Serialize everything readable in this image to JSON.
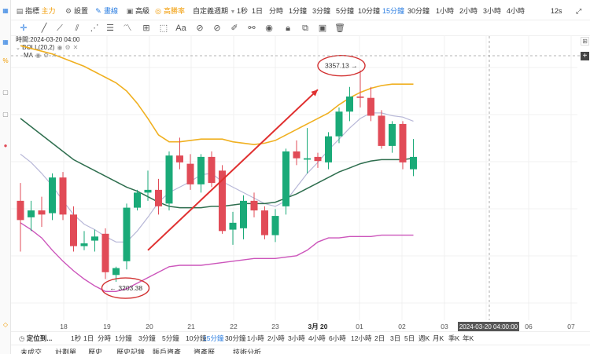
{
  "toolbar": {
    "indicator_label": "指標",
    "indicator_badge": "主力",
    "settings_label": "設置",
    "draw_label": "畫線",
    "advanced_label": "高級",
    "win_rate_label": "高勝率",
    "custom_period_label": "自定義週期",
    "periods": [
      "1秒",
      "1日",
      "分時",
      "1分鐘",
      "3分鐘",
      "5分鐘",
      "10分鐘",
      "15分鐘",
      "30分鐘",
      "1小時",
      "2小時",
      "3小時",
      "4小時"
    ],
    "active_period": "15分鐘",
    "countdown": "12s"
  },
  "chart_info": {
    "time_label": "時間:2024-03-20 04:00",
    "boll_label": "BOLL(20,2)",
    "ma_label": "MA"
  },
  "annotations": {
    "low_price": "3203.38",
    "high_price": "3357.13"
  },
  "crosshair_time": "2024-03-20 04:00:00",
  "colors": {
    "up": "#1aaa78",
    "down": "#e14b57",
    "boll_upper": "#f0b020",
    "boll_lower": "#cc55bb",
    "boll_mid": "#2e6e4e",
    "ma": "#b8b8d8",
    "arrow": "#e03030",
    "accent": "#2a7de1"
  },
  "chart_data": {
    "type": "candlestick",
    "x_ticks": [
      "18",
      "19",
      "20",
      "21",
      "22",
      "23",
      "3月 20",
      "01",
      "02",
      "03",
      "05",
      "06",
      "07"
    ],
    "candles": [
      {
        "o": 3262,
        "h": 3275,
        "l": 3225,
        "c": 3248
      },
      {
        "o": 3250,
        "h": 3262,
        "l": 3240,
        "c": 3255
      },
      {
        "o": 3255,
        "h": 3265,
        "l": 3243,
        "c": 3252
      },
      {
        "o": 3253,
        "h": 3282,
        "l": 3248,
        "c": 3279
      },
      {
        "o": 3279,
        "h": 3283,
        "l": 3248,
        "c": 3252
      },
      {
        "o": 3252,
        "h": 3258,
        "l": 3225,
        "c": 3229
      },
      {
        "o": 3229,
        "h": 3240,
        "l": 3226,
        "c": 3231
      },
      {
        "o": 3233,
        "h": 3241,
        "l": 3225,
        "c": 3236
      },
      {
        "o": 3238,
        "h": 3242,
        "l": 3205,
        "c": 3210
      },
      {
        "o": 3208,
        "h": 3214,
        "l": 3203,
        "c": 3213
      },
      {
        "o": 3218,
        "h": 3260,
        "l": 3212,
        "c": 3257
      },
      {
        "o": 3257,
        "h": 3270,
        "l": 3255,
        "c": 3268
      },
      {
        "o": 3268,
        "h": 3284,
        "l": 3262,
        "c": 3270
      },
      {
        "o": 3270,
        "h": 3278,
        "l": 3252,
        "c": 3258
      },
      {
        "o": 3260,
        "h": 3298,
        "l": 3255,
        "c": 3295
      },
      {
        "o": 3295,
        "h": 3308,
        "l": 3285,
        "c": 3290
      },
      {
        "o": 3289,
        "h": 3296,
        "l": 3270,
        "c": 3274
      },
      {
        "o": 3274,
        "h": 3296,
        "l": 3268,
        "c": 3294
      },
      {
        "o": 3294,
        "h": 3298,
        "l": 3272,
        "c": 3275
      },
      {
        "o": 3284,
        "h": 3288,
        "l": 3238,
        "c": 3240
      },
      {
        "o": 3241,
        "h": 3254,
        "l": 3230,
        "c": 3246
      },
      {
        "o": 3242,
        "h": 3266,
        "l": 3234,
        "c": 3262
      },
      {
        "o": 3262,
        "h": 3268,
        "l": 3250,
        "c": 3255
      },
      {
        "o": 3255,
        "h": 3258,
        "l": 3234,
        "c": 3237
      },
      {
        "o": 3237,
        "h": 3256,
        "l": 3232,
        "c": 3251
      },
      {
        "o": 3258,
        "h": 3300,
        "l": 3252,
        "c": 3298
      },
      {
        "o": 3298,
        "h": 3306,
        "l": 3288,
        "c": 3293
      },
      {
        "o": 3292,
        "h": 3315,
        "l": 3282,
        "c": 3293
      },
      {
        "o": 3294,
        "h": 3297,
        "l": 3286,
        "c": 3291
      },
      {
        "o": 3290,
        "h": 3312,
        "l": 3285,
        "c": 3309
      },
      {
        "o": 3309,
        "h": 3330,
        "l": 3304,
        "c": 3327
      },
      {
        "o": 3327,
        "h": 3345,
        "l": 3320,
        "c": 3338
      },
      {
        "o": 3338,
        "h": 3357,
        "l": 3330,
        "c": 3337
      },
      {
        "o": 3337,
        "h": 3345,
        "l": 3320,
        "c": 3324
      },
      {
        "o": 3324,
        "h": 3328,
        "l": 3300,
        "c": 3302
      },
      {
        "o": 3302,
        "h": 3320,
        "l": 3297,
        "c": 3318
      },
      {
        "o": 3318,
        "h": 3320,
        "l": 3285,
        "c": 3290
      },
      {
        "o": 3285,
        "h": 3307,
        "l": 3280,
        "c": 3294
      }
    ],
    "boll_upper": [
      3375,
      3373,
      3371,
      3369,
      3366,
      3363,
      3360,
      3356,
      3352,
      3348,
      3342,
      3333,
      3322,
      3310,
      3305,
      3305,
      3306,
      3307,
      3307,
      3307,
      3305,
      3304,
      3303,
      3304,
      3306,
      3310,
      3314,
      3318,
      3322,
      3326,
      3332,
      3337,
      3341,
      3344,
      3346,
      3347,
      3347,
      3347
    ],
    "boll_mid": [
      3322,
      3316,
      3310,
      3304,
      3298,
      3292,
      3288,
      3284,
      3280,
      3276,
      3272,
      3269,
      3265,
      3261,
      3258,
      3257,
      3257,
      3257,
      3258,
      3258,
      3259,
      3260,
      3260,
      3260,
      3261,
      3264,
      3267,
      3271,
      3275,
      3279,
      3283,
      3286,
      3289,
      3291,
      3292,
      3292,
      3292,
      3293
    ],
    "boll_lower": [
      3246,
      3241,
      3235,
      3226,
      3218,
      3211,
      3205,
      3200,
      3196,
      3196,
      3198,
      3202,
      3206,
      3210,
      3214,
      3215,
      3215,
      3215,
      3216,
      3217,
      3218,
      3219,
      3220,
      3220,
      3220,
      3221,
      3222,
      3226,
      3232,
      3235,
      3235,
      3236,
      3236,
      3236,
      3237,
      3237,
      3237,
      3237
    ],
    "ma": [
      3296,
      3290,
      3282,
      3273,
      3262,
      3252,
      3245,
      3241,
      3236,
      3232,
      3232,
      3240,
      3250,
      3261,
      3268,
      3272,
      3276,
      3281,
      3282,
      3276,
      3272,
      3268,
      3264,
      3260,
      3258,
      3262,
      3272,
      3282,
      3290,
      3299,
      3307,
      3315,
      3322,
      3326,
      3326,
      3324,
      3323,
      3320
    ],
    "arrow": {
      "from_index": 12,
      "from_price": 3226,
      "to_index": 28,
      "to_price": 3343
    }
  },
  "bottom_toolbar": {
    "locate_label": "定位到...",
    "periods": [
      "1秒",
      "1日",
      "分時",
      "1分鐘",
      "3分鐘",
      "5分鐘",
      "10分鐘",
      "15分鐘",
      "30分鐘",
      "1小時",
      "2小時",
      "3小時",
      "4小時",
      "6小時",
      "12小時",
      "2日",
      "3日",
      "5日",
      "週K",
      "月K",
      "季K",
      "年K"
    ],
    "active_period": "15分鐘"
  },
  "bottom_tabs": [
    "未成交",
    "計劃單",
    "歷史",
    "歷史記錄",
    "賬戶資產",
    "資產歷",
    "技術分析"
  ]
}
